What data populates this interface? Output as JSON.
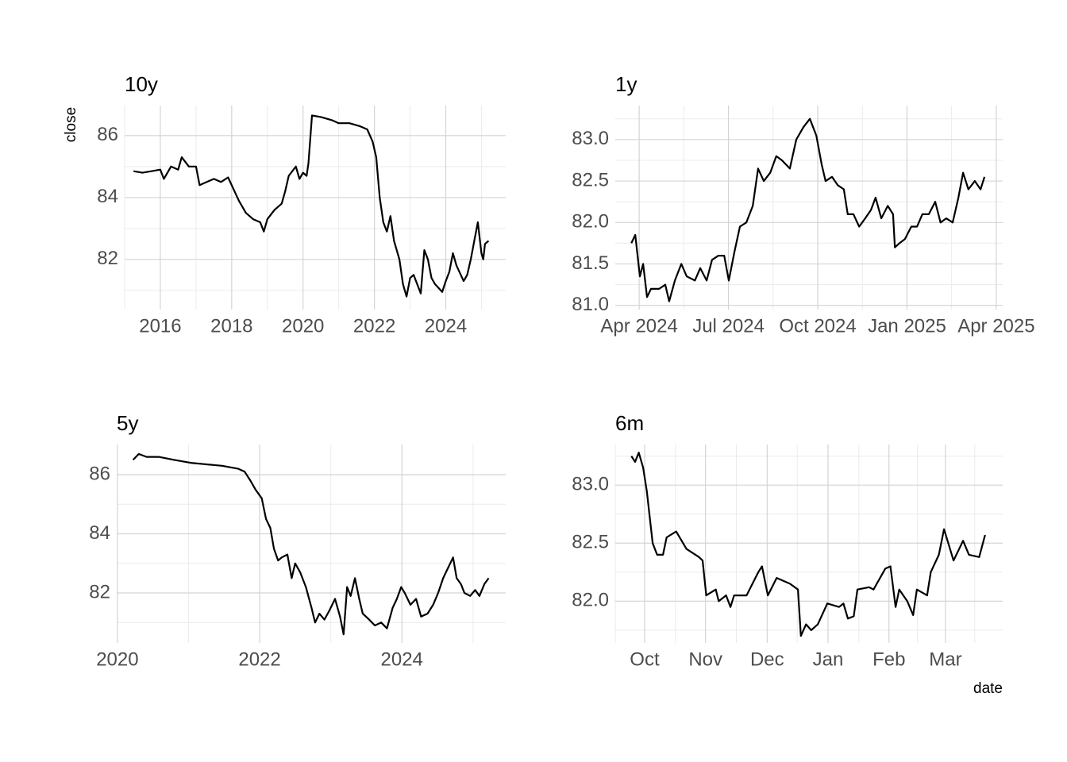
{
  "chart_data": [
    {
      "type": "line",
      "title": "10y",
      "y_label": "close",
      "grid": true,
      "x": [
        2015.25,
        2015.5,
        2015.75,
        2016.0,
        2016.1,
        2016.3,
        2016.5,
        2016.6,
        2016.8,
        2017.0,
        2017.1,
        2017.3,
        2017.5,
        2017.7,
        2017.9,
        2018.0,
        2018.2,
        2018.4,
        2018.6,
        2018.8,
        2018.9,
        2019.0,
        2019.2,
        2019.4,
        2019.5,
        2019.6,
        2019.8,
        2019.9,
        2020.0,
        2020.1,
        2020.15,
        2020.25,
        2020.5,
        2020.8,
        2021.0,
        2021.3,
        2021.6,
        2021.8,
        2021.95,
        2022.05,
        2022.15,
        2022.25,
        2022.35,
        2022.45,
        2022.55,
        2022.7,
        2022.8,
        2022.9,
        2023.0,
        2023.1,
        2023.2,
        2023.3,
        2023.4,
        2023.5,
        2023.6,
        2023.7,
        2023.9,
        2024.0,
        2024.1,
        2024.2,
        2024.3,
        2024.5,
        2024.6,
        2024.7,
        2024.8,
        2024.9,
        2025.0,
        2025.05,
        2025.1,
        2025.2
      ],
      "series": [
        {
          "color": "#000000",
          "values": [
            84.85,
            84.8,
            84.85,
            84.9,
            84.6,
            85.0,
            84.9,
            85.3,
            85.0,
            85.0,
            84.4,
            84.5,
            84.6,
            84.5,
            84.65,
            84.4,
            83.9,
            83.5,
            83.3,
            83.2,
            82.9,
            83.3,
            83.6,
            83.8,
            84.2,
            84.7,
            85.0,
            84.6,
            84.8,
            84.7,
            85.1,
            86.65,
            86.6,
            86.5,
            86.4,
            86.4,
            86.3,
            86.2,
            85.8,
            85.3,
            84.0,
            83.2,
            82.9,
            83.4,
            82.6,
            82.0,
            81.2,
            80.8,
            81.4,
            81.5,
            81.2,
            80.9,
            82.3,
            82.0,
            81.4,
            81.2,
            80.95,
            81.3,
            81.6,
            82.2,
            81.8,
            81.3,
            81.5,
            82.0,
            82.6,
            83.2,
            82.2,
            82.0,
            82.5,
            82.6
          ]
        }
      ],
      "xlim": [
        2015.0,
        2025.68
      ],
      "ylim": [
        80.38,
        86.97
      ],
      "xticks": [
        2016,
        2018,
        2020,
        2022,
        2024
      ],
      "yticks": [
        82,
        84,
        86
      ],
      "minor_xticks": [
        2015,
        2017,
        2019,
        2021,
        2023,
        2025
      ],
      "minor_yticks": [
        81,
        83,
        85
      ]
    },
    {
      "type": "line",
      "title": "1y",
      "grid": true,
      "x": [
        2024.228,
        2024.239,
        2024.252,
        2024.261,
        2024.272,
        2024.283,
        2024.306,
        2024.323,
        2024.334,
        2024.35,
        2024.368,
        2024.383,
        2024.406,
        2024.421,
        2024.439,
        2024.454,
        2024.472,
        2024.488,
        2024.501,
        2024.517,
        2024.532,
        2024.55,
        2024.568,
        2024.583,
        2024.599,
        2024.617,
        2024.634,
        2024.65,
        2024.672,
        2024.69,
        2024.71,
        2024.728,
        2024.746,
        2024.761,
        2024.772,
        2024.79,
        2024.806,
        2024.823,
        2024.834,
        2024.85,
        2024.866,
        2024.883,
        2024.899,
        2024.912,
        2024.928,
        2024.946,
        2024.961,
        2024.966,
        2024.979,
        2024.994,
        2025.012,
        2025.028,
        2025.043,
        2025.061,
        2025.079,
        2025.094,
        2025.11,
        2025.128,
        2025.144,
        2025.157,
        2025.172,
        2025.19,
        2025.206,
        2025.217
      ],
      "series": [
        {
          "color": "#000000",
          "values": [
            81.75,
            81.85,
            81.35,
            81.5,
            81.1,
            81.2,
            81.2,
            81.25,
            81.05,
            81.3,
            81.5,
            81.35,
            81.3,
            81.45,
            81.3,
            81.55,
            81.6,
            81.6,
            81.3,
            81.65,
            81.95,
            82.0,
            82.2,
            82.65,
            82.5,
            82.6,
            82.8,
            82.75,
            82.65,
            83.0,
            83.15,
            83.25,
            83.05,
            82.7,
            82.5,
            82.55,
            82.45,
            82.4,
            82.1,
            82.1,
            81.95,
            82.05,
            82.15,
            82.3,
            82.05,
            82.2,
            82.1,
            81.7,
            81.75,
            81.8,
            81.95,
            81.95,
            82.1,
            82.1,
            82.25,
            82.0,
            82.05,
            82.0,
            82.3,
            82.6,
            82.4,
            82.5,
            82.4,
            82.55
          ]
        }
      ],
      "xlim": [
        2024.183,
        2025.268
      ],
      "ylim": [
        80.95,
        83.41
      ],
      "xticks": [
        {
          "value": 2024.25,
          "label": "Apr 2024"
        },
        {
          "value": 2024.5,
          "label": "Jul 2024"
        },
        {
          "value": 2024.75,
          "label": "Oct 2024"
        },
        {
          "value": 2025.0,
          "label": "Jan 2025"
        },
        {
          "value": 2025.25,
          "label": "Apr 2025"
        }
      ],
      "yticks": [
        {
          "value": 81,
          "label": "81.0"
        },
        81.5,
        {
          "value": 82,
          "label": "82.0"
        },
        82.5,
        {
          "value": 83,
          "label": "83.0"
        }
      ],
      "minor_xticks": [
        2024.375,
        2024.625,
        2024.875,
        2025.125
      ],
      "minor_yticks": [
        81.25,
        81.75,
        82.25,
        82.75,
        83.25
      ]
    },
    {
      "type": "line",
      "title": "5y",
      "grid": true,
      "x": [
        2020.22,
        2020.3,
        2020.41,
        2020.58,
        2020.8,
        2021.03,
        2021.25,
        2021.47,
        2021.7,
        2021.79,
        2021.87,
        2021.94,
        2022.03,
        2022.09,
        2022.15,
        2022.2,
        2022.26,
        2022.31,
        2022.39,
        2022.45,
        2022.5,
        2022.57,
        2022.65,
        2022.73,
        2022.78,
        2022.84,
        2022.91,
        2022.98,
        2023.06,
        2023.13,
        2023.18,
        2023.23,
        2023.28,
        2023.34,
        2023.4,
        2023.45,
        2023.54,
        2023.62,
        2023.71,
        2023.79,
        2023.87,
        2023.93,
        2023.99,
        2024.04,
        2024.12,
        2024.2,
        2024.27,
        2024.36,
        2024.44,
        2024.51,
        2024.58,
        2024.66,
        2024.72,
        2024.77,
        2024.83,
        2024.88,
        2024.96,
        2025.03,
        2025.09,
        2025.16,
        2025.22
      ],
      "series": [
        {
          "color": "#000000",
          "values": [
            86.5,
            86.7,
            86.6,
            86.6,
            86.5,
            86.4,
            86.35,
            86.3,
            86.2,
            86.1,
            85.8,
            85.5,
            85.2,
            84.5,
            84.2,
            83.5,
            83.1,
            83.2,
            83.3,
            82.5,
            83.0,
            82.7,
            82.2,
            81.5,
            81.0,
            81.3,
            81.1,
            81.4,
            81.8,
            81.2,
            80.6,
            82.2,
            81.9,
            82.5,
            81.8,
            81.3,
            81.1,
            80.9,
            81.0,
            80.8,
            81.5,
            81.8,
            82.2,
            82.0,
            81.6,
            81.8,
            81.2,
            81.3,
            81.6,
            82.0,
            82.5,
            82.9,
            83.2,
            82.5,
            82.3,
            82.0,
            81.9,
            82.1,
            81.9,
            82.3,
            82.5
          ]
        }
      ],
      "xlim": [
        2019.99,
        2025.46
      ],
      "ylim": [
        80.31,
        87.02
      ],
      "xticks": [
        2020,
        2022,
        2024
      ],
      "yticks": [
        82,
        84,
        86
      ],
      "minor_xticks": [
        2021,
        2023,
        2025
      ],
      "minor_yticks": [
        81,
        83,
        85
      ]
    },
    {
      "type": "line",
      "title": "6m",
      "x_label": "date",
      "grid": true,
      "x": [
        2024.732,
        2024.737,
        2024.742,
        2024.748,
        2024.753,
        2024.761,
        2024.767,
        2024.775,
        2024.78,
        2024.793,
        2024.807,
        2024.824,
        2024.829,
        2024.834,
        2024.847,
        2024.851,
        2024.861,
        2024.867,
        2024.872,
        2024.889,
        2024.905,
        2024.91,
        2024.918,
        2024.93,
        2024.948,
        2024.959,
        2024.963,
        2024.97,
        2024.977,
        2024.986,
        2024.999,
        2025.015,
        2025.021,
        2025.027,
        2025.035,
        2025.04,
        2025.056,
        2025.062,
        2025.078,
        2025.085,
        2025.092,
        2025.097,
        2025.108,
        2025.116,
        2025.121,
        2025.135,
        2025.14,
        2025.151,
        2025.158,
        2025.171,
        2025.184,
        2025.192,
        2025.206,
        2025.214
      ],
      "series": [
        {
          "color": "#000000",
          "values": [
            83.25,
            83.2,
            83.28,
            83.15,
            82.95,
            82.5,
            82.4,
            82.4,
            82.55,
            82.6,
            82.45,
            82.38,
            82.35,
            82.05,
            82.1,
            82.0,
            82.05,
            81.95,
            82.05,
            82.05,
            82.25,
            82.3,
            82.05,
            82.2,
            82.15,
            82.1,
            81.7,
            81.8,
            81.75,
            81.8,
            81.98,
            81.95,
            81.98,
            81.85,
            81.87,
            82.1,
            82.12,
            82.1,
            82.28,
            82.3,
            81.95,
            82.1,
            82.0,
            81.88,
            82.1,
            82.05,
            82.25,
            82.4,
            82.62,
            82.35,
            82.52,
            82.4,
            82.38,
            82.57
          ]
        }
      ],
      "xlim": [
        2024.71,
        2025.238
      ],
      "ylim": [
        81.64,
        83.35
      ],
      "xticks": [
        {
          "value": 2024.75,
          "label": "Oct"
        },
        {
          "value": 2024.833,
          "label": "Nov"
        },
        {
          "value": 2024.917,
          "label": "Dec"
        },
        {
          "value": 2025.0,
          "label": "Jan"
        },
        {
          "value": 2025.083,
          "label": "Feb"
        },
        {
          "value": 2025.16,
          "label": "Mar"
        }
      ],
      "yticks": [
        {
          "value": 82,
          "label": "82.0"
        },
        82.5,
        {
          "value": 83,
          "label": "83.0"
        }
      ],
      "minor_xticks": [
        2024.71,
        2024.792,
        2024.875,
        2024.958,
        2025.042,
        2025.122,
        2025.2
      ],
      "minor_yticks": [
        81.75,
        82.25,
        82.75,
        83.25
      ]
    }
  ]
}
